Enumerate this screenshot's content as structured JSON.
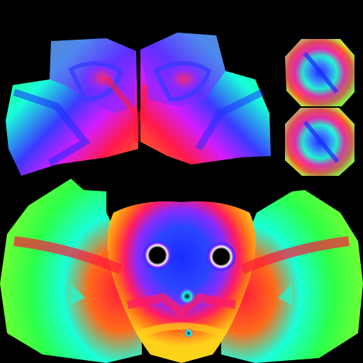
{
  "image": {
    "description_free": true
  },
  "palette": {
    "background": "#000000",
    "green": "#2bff3a",
    "lime": "#7dff2e",
    "cyan": "#19ffd9",
    "blue": "#1637ff",
    "violet": "#7a22ff",
    "magenta": "#e51cff",
    "red": "#ff1a3a",
    "orange": "#ff6a1a",
    "yellow": "#ffd21a"
  },
  "islands": [
    {
      "id": "left-eye-patch"
    },
    {
      "id": "right-eye-patch"
    },
    {
      "id": "top-disc"
    },
    {
      "id": "bottom-disc"
    },
    {
      "id": "face-patch"
    }
  ]
}
